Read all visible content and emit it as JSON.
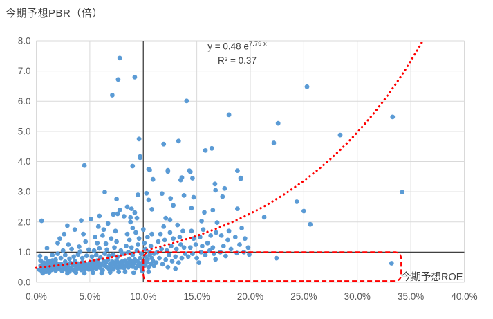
{
  "chart_data": {
    "type": "scatter",
    "title": "今期予想PBR（倍）",
    "xlabel": "今期予想ROE",
    "x_ticks": [
      "0.0%",
      "5.0%",
      "10.0%",
      "15.0%",
      "20.0%",
      "25.0%",
      "30.0%",
      "35.0%",
      "40.0%"
    ],
    "y_ticks": [
      "0.0",
      "1.0",
      "2.0",
      "3.0",
      "4.0",
      "5.0",
      "6.0",
      "7.0",
      "8.0"
    ],
    "xlim_pct": [
      0,
      40
    ],
    "ylim": [
      0,
      8
    ],
    "grid": true,
    "equation": {
      "base": "y = 0.48 e",
      "exponent": "7.79 x",
      "r2": "R² = 0.37"
    },
    "trendline": {
      "kind": "exponential",
      "a": 0.48,
      "b": 7.79,
      "style": "dotted",
      "color": "#FF0000"
    },
    "crosshair": {
      "x_pct": 10,
      "y": 1.0,
      "color": "#404040"
    },
    "highlight_box": {
      "x0_pct": 10,
      "x1_pct": 34.1,
      "y0": 0.04,
      "y1": 1.0,
      "color": "#FF0000",
      "style": "dashed"
    },
    "point_color": "#5B9BD5",
    "grid_color": "#D9D9D9",
    "tick_label_color": "#595959",
    "points": [
      [
        7.8,
        7.43
      ],
      [
        7.65,
        6.72
      ],
      [
        9.2,
        6.8
      ],
      [
        7.1,
        6.2
      ],
      [
        14.05,
        6.01
      ],
      [
        18.0,
        5.55
      ],
      [
        25.3,
        6.48
      ],
      [
        22.6,
        5.27
      ],
      [
        33.3,
        5.48
      ],
      [
        28.4,
        4.88
      ],
      [
        22.2,
        4.62
      ],
      [
        9.6,
        4.75
      ],
      [
        9.7,
        4.17
      ],
      [
        4.5,
        3.87
      ],
      [
        9.0,
        3.85
      ],
      [
        10.5,
        3.75
      ],
      [
        11.9,
        4.58
      ],
      [
        13.3,
        4.68
      ],
      [
        15.8,
        4.37
      ],
      [
        16.4,
        4.44
      ],
      [
        12.3,
        3.71
      ],
      [
        14.3,
        3.7
      ],
      [
        13.6,
        3.47
      ],
      [
        14.6,
        3.45
      ],
      [
        19.1,
        3.46
      ],
      [
        18.8,
        3.7
      ],
      [
        34.2,
        2.99
      ],
      [
        24.35,
        2.67
      ],
      [
        25.0,
        2.36
      ],
      [
        21.3,
        2.16
      ],
      [
        25.6,
        1.92
      ],
      [
        22.45,
        0.8
      ],
      [
        33.2,
        0.63
      ],
      [
        16.7,
        3.26
      ],
      [
        16.75,
        3.05
      ],
      [
        17.6,
        3.11
      ],
      [
        19.1,
        3.43
      ],
      [
        9.7,
        4.13
      ],
      [
        10.6,
        3.72
      ],
      [
        12.3,
        3.67
      ],
      [
        14.4,
        3.66
      ],
      [
        10.9,
        3.41
      ],
      [
        13.5,
        3.39
      ],
      [
        6.4,
        2.99
      ],
      [
        9.5,
        2.9
      ],
      [
        10.3,
        2.95
      ],
      [
        11.75,
        2.94
      ],
      [
        13.8,
        2.88
      ],
      [
        7.5,
        2.76
      ],
      [
        12.55,
        2.78
      ],
      [
        10.5,
        2.73
      ],
      [
        14.7,
        2.82
      ],
      [
        17.4,
        2.84
      ],
      [
        12.8,
        2.55
      ],
      [
        7.8,
        2.4
      ],
      [
        8.5,
        2.5
      ],
      [
        8.9,
        2.44
      ],
      [
        9.2,
        2.31
      ],
      [
        10.8,
        2.42
      ],
      [
        14.5,
        2.46
      ],
      [
        15.7,
        2.32
      ],
      [
        16.5,
        2.39
      ],
      [
        18.8,
        2.44
      ],
      [
        7.2,
        2.25
      ],
      [
        7.6,
        2.27
      ],
      [
        8.2,
        2.19
      ],
      [
        8.8,
        2.15
      ],
      [
        9.4,
        2.13
      ],
      [
        12.1,
        2.13
      ],
      [
        12.5,
        2.07
      ],
      [
        15.45,
        2.03
      ],
      [
        16.9,
        1.98
      ],
      [
        0.5,
        2.04
      ],
      [
        4.2,
        2.05
      ],
      [
        5.1,
        2.1
      ],
      [
        5.9,
        2.2
      ],
      [
        0.3,
        0.42
      ],
      [
        0.4,
        0.55
      ],
      [
        0.5,
        0.38
      ],
      [
        0.6,
        0.62
      ],
      [
        0.7,
        0.45
      ],
      [
        0.8,
        0.52
      ],
      [
        0.9,
        0.35
      ],
      [
        1.0,
        0.58
      ],
      [
        1.1,
        0.44
      ],
      [
        1.2,
        0.67
      ],
      [
        1.3,
        0.5
      ],
      [
        1.4,
        0.41
      ],
      [
        1.5,
        0.72
      ],
      [
        1.6,
        0.48
      ],
      [
        1.7,
        0.56
      ],
      [
        1.8,
        0.39
      ],
      [
        1.9,
        0.63
      ],
      [
        2.0,
        0.47
      ],
      [
        0.6,
        0.3
      ],
      [
        1.2,
        0.33
      ],
      [
        1.8,
        0.75
      ],
      [
        0.9,
        0.8
      ],
      [
        1.5,
        0.9
      ],
      [
        1.0,
        1.13
      ],
      [
        2.0,
        0.95
      ],
      [
        0.35,
        0.87
      ],
      [
        0.4,
        0.72
      ],
      [
        0.7,
        0.65
      ],
      [
        1.1,
        0.7
      ],
      [
        1.4,
        0.62
      ],
      [
        1.7,
        0.68
      ],
      [
        2.1,
        0.52
      ],
      [
        2.2,
        0.44
      ],
      [
        2.3,
        0.61
      ],
      [
        2.4,
        0.38
      ],
      [
        2.5,
        0.55
      ],
      [
        2.6,
        0.47
      ],
      [
        2.7,
        0.68
      ],
      [
        2.8,
        0.42
      ],
      [
        2.9,
        0.58
      ],
      [
        3.0,
        0.5
      ],
      [
        3.1,
        0.36
      ],
      [
        3.2,
        0.64
      ],
      [
        3.3,
        0.46
      ],
      [
        3.4,
        0.57
      ],
      [
        3.5,
        0.4
      ],
      [
        3.6,
        0.7
      ],
      [
        3.7,
        0.53
      ],
      [
        3.8,
        0.45
      ],
      [
        3.9,
        0.62
      ],
      [
        4.0,
        0.49
      ],
      [
        4.1,
        0.58
      ],
      [
        4.2,
        0.41
      ],
      [
        4.3,
        0.66
      ],
      [
        4.4,
        0.52
      ],
      [
        4.5,
        0.44
      ],
      [
        4.6,
        0.6
      ],
      [
        4.7,
        0.48
      ],
      [
        4.8,
        0.55
      ],
      [
        4.9,
        0.43
      ],
      [
        5.0,
        0.65
      ],
      [
        2.3,
        0.8
      ],
      [
        2.7,
        0.9
      ],
      [
        3.1,
        0.78
      ],
      [
        3.5,
        0.85
      ],
      [
        3.9,
        0.92
      ],
      [
        4.3,
        0.8
      ],
      [
        4.7,
        0.88
      ],
      [
        2.5,
        1.05
      ],
      [
        3.3,
        1.1
      ],
      [
        4.1,
        1.02
      ],
      [
        4.9,
        1.08
      ],
      [
        2.9,
        0.3
      ],
      [
        3.7,
        0.32
      ],
      [
        4.5,
        0.3
      ],
      [
        2.0,
        1.3
      ],
      [
        3.0,
        1.25
      ],
      [
        4.0,
        1.18
      ],
      [
        4.6,
        1.35
      ],
      [
        2.9,
        1.88
      ],
      [
        3.6,
        1.75
      ],
      [
        4.4,
        1.6
      ],
      [
        2.2,
        1.45
      ],
      [
        2.6,
        1.6
      ],
      [
        5.1,
        0.55
      ],
      [
        5.2,
        0.42
      ],
      [
        5.3,
        0.68
      ],
      [
        5.4,
        0.5
      ],
      [
        5.5,
        0.6
      ],
      [
        5.6,
        0.45
      ],
      [
        5.7,
        0.72
      ],
      [
        5.8,
        0.53
      ],
      [
        5.9,
        0.63
      ],
      [
        6.0,
        0.48
      ],
      [
        6.1,
        0.58
      ],
      [
        6.2,
        0.4
      ],
      [
        6.3,
        0.7
      ],
      [
        6.4,
        0.55
      ],
      [
        6.5,
        0.65
      ],
      [
        6.6,
        0.5
      ],
      [
        6.7,
        0.75
      ],
      [
        6.8,
        0.45
      ],
      [
        6.9,
        0.6
      ],
      [
        7.0,
        0.52
      ],
      [
        7.1,
        0.68
      ],
      [
        7.2,
        0.43
      ],
      [
        7.3,
        0.62
      ],
      [
        7.4,
        0.55
      ],
      [
        7.5,
        0.72
      ],
      [
        7.6,
        0.48
      ],
      [
        7.7,
        0.65
      ],
      [
        7.8,
        0.58
      ],
      [
        7.9,
        0.5
      ],
      [
        8.0,
        0.68
      ],
      [
        5.2,
        0.85
      ],
      [
        5.6,
        0.9
      ],
      [
        6.0,
        0.82
      ],
      [
        6.4,
        0.95
      ],
      [
        6.8,
        0.88
      ],
      [
        7.2,
        0.92
      ],
      [
        7.6,
        0.85
      ],
      [
        8.0,
        0.95
      ],
      [
        5.4,
        1.05
      ],
      [
        5.9,
        1.12
      ],
      [
        6.6,
        1.08
      ],
      [
        7.3,
        1.15
      ],
      [
        7.9,
        1.05
      ],
      [
        5.3,
        0.32
      ],
      [
        6.1,
        0.3
      ],
      [
        6.9,
        0.33
      ],
      [
        7.7,
        0.35
      ],
      [
        5.7,
        1.3
      ],
      [
        6.5,
        1.28
      ],
      [
        7.5,
        1.35
      ],
      [
        5.5,
        1.5
      ],
      [
        6.2,
        1.55
      ],
      [
        7.0,
        1.45
      ],
      [
        7.4,
        1.7
      ],
      [
        6.3,
        1.75
      ],
      [
        5.8,
        1.85
      ],
      [
        6.7,
        1.95
      ],
      [
        8.1,
        0.6
      ],
      [
        8.2,
        0.48
      ],
      [
        8.3,
        0.72
      ],
      [
        8.4,
        0.55
      ],
      [
        8.5,
        0.65
      ],
      [
        8.6,
        0.5
      ],
      [
        8.7,
        0.78
      ],
      [
        8.8,
        0.58
      ],
      [
        8.9,
        0.68
      ],
      [
        9.0,
        0.52
      ],
      [
        9.1,
        0.62
      ],
      [
        9.2,
        0.75
      ],
      [
        9.3,
        0.48
      ],
      [
        9.4,
        0.7
      ],
      [
        9.5,
        0.55
      ],
      [
        9.6,
        0.65
      ],
      [
        9.7,
        0.8
      ],
      [
        9.8,
        0.5
      ],
      [
        9.9,
        0.6
      ],
      [
        10.0,
        0.7
      ],
      [
        10.1,
        0.55
      ],
      [
        10.2,
        0.85
      ],
      [
        10.3,
        0.65
      ],
      [
        10.4,
        0.75
      ],
      [
        10.5,
        0.5
      ],
      [
        10.6,
        0.9
      ],
      [
        10.7,
        0.6
      ],
      [
        10.8,
        0.8
      ],
      [
        10.9,
        0.7
      ],
      [
        11.0,
        0.55
      ],
      [
        8.2,
        0.95
      ],
      [
        8.6,
        1.0
      ],
      [
        9.0,
        0.9
      ],
      [
        9.4,
        1.05
      ],
      [
        9.8,
        0.95
      ],
      [
        10.2,
        1.1
      ],
      [
        10.6,
        1.0
      ],
      [
        11.0,
        0.95
      ],
      [
        8.4,
        1.2
      ],
      [
        8.9,
        1.15
      ],
      [
        9.5,
        1.25
      ],
      [
        10.1,
        1.3
      ],
      [
        10.7,
        1.2
      ],
      [
        8.3,
        0.35
      ],
      [
        9.1,
        0.32
      ],
      [
        9.9,
        0.38
      ],
      [
        10.5,
        0.35
      ],
      [
        8.7,
        1.4
      ],
      [
        9.6,
        1.45
      ],
      [
        10.4,
        1.5
      ],
      [
        8.5,
        1.6
      ],
      [
        9.3,
        1.65
      ],
      [
        10.8,
        1.6
      ],
      [
        9.0,
        1.8
      ],
      [
        10.0,
        1.75
      ],
      [
        8.8,
        2.0
      ],
      [
        11.2,
        0.65
      ],
      [
        11.5,
        0.8
      ],
      [
        11.8,
        0.6
      ],
      [
        12.1,
        0.75
      ],
      [
        12.4,
        0.9
      ],
      [
        12.7,
        0.7
      ],
      [
        13.0,
        0.85
      ],
      [
        13.3,
        0.65
      ],
      [
        13.6,
        0.8
      ],
      [
        13.9,
        0.95
      ],
      [
        11.3,
        1.0
      ],
      [
        11.7,
        1.1
      ],
      [
        12.2,
        1.05
      ],
      [
        12.6,
        1.2
      ],
      [
        13.1,
        1.1
      ],
      [
        13.5,
        1.25
      ],
      [
        13.8,
        1.15
      ],
      [
        11.4,
        1.35
      ],
      [
        12.0,
        1.4
      ],
      [
        12.8,
        1.45
      ],
      [
        13.4,
        1.5
      ],
      [
        11.6,
        1.6
      ],
      [
        12.5,
        1.65
      ],
      [
        13.7,
        1.7
      ],
      [
        11.9,
        1.85
      ],
      [
        13.2,
        1.9
      ],
      [
        12.3,
        0.5
      ],
      [
        13.0,
        0.45
      ],
      [
        14.2,
        0.85
      ],
      [
        14.6,
        0.95
      ],
      [
        15.0,
        0.8
      ],
      [
        15.4,
        1.0
      ],
      [
        15.8,
        0.9
      ],
      [
        16.2,
        1.05
      ],
      [
        16.6,
        0.95
      ],
      [
        14.4,
        1.15
      ],
      [
        14.9,
        1.25
      ],
      [
        15.5,
        1.2
      ],
      [
        16.0,
        1.3
      ],
      [
        16.5,
        1.15
      ],
      [
        14.7,
        1.45
      ],
      [
        15.3,
        1.5
      ],
      [
        16.3,
        1.55
      ],
      [
        14.5,
        1.7
      ],
      [
        15.6,
        1.75
      ],
      [
        16.8,
        1.65
      ],
      [
        16.75,
        0.76
      ],
      [
        15.2,
        0.65
      ],
      [
        17.2,
        1.0
      ],
      [
        17.7,
        0.87
      ],
      [
        18.75,
        0.97
      ],
      [
        19.4,
        1.0
      ],
      [
        17.5,
        1.2
      ],
      [
        18.2,
        1.1
      ],
      [
        19.0,
        1.25
      ],
      [
        19.8,
        1.15
      ],
      [
        17.9,
        1.4
      ],
      [
        18.6,
        1.5
      ],
      [
        19.5,
        1.45
      ],
      [
        18.0,
        1.7
      ],
      [
        19.2,
        1.8
      ],
      [
        17.3,
        1.55
      ],
      [
        19.9,
        0.92
      ]
    ]
  }
}
